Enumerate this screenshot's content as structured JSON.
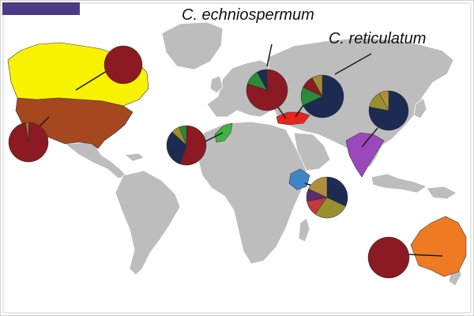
{
  "labels": {
    "echniospermum": "C. echniospermum",
    "reticulatum": "C. reticulatum"
  },
  "colors": {
    "land": "#bdbdbd",
    "border": "#ffffff",
    "tab": "#4a3b86",
    "canada": "#f7f200",
    "usa": "#a5471f",
    "morocco": "#3fb23f",
    "turkey": "#e8231d",
    "india": "#9b48ba",
    "ethiopia": "#3e86c8",
    "australia": "#ef7a24",
    "pie_maroon": "#8b1a22",
    "pie_navy": "#1d2a52",
    "pie_olive": "#9a8f2f",
    "pie_green": "#2a8a3a",
    "pie_tan": "#b08f3c",
    "pie_purple": "#5a2d6e",
    "pie_red": "#c23a3a"
  },
  "pies": [
    {
      "name": "canada-pie",
      "slices": [
        {
          "value": 1.0,
          "color": "#8b1a22"
        }
      ]
    },
    {
      "name": "usa-pie",
      "slices": [
        {
          "value": 0.98,
          "color": "#8b1a22"
        },
        {
          "value": 0.02,
          "color": "#b08f3c"
        }
      ]
    },
    {
      "name": "morocco-pie",
      "slices": [
        {
          "value": 0.55,
          "color": "#8b1a22"
        },
        {
          "value": 0.32,
          "color": "#1d2a52"
        },
        {
          "value": 0.07,
          "color": "#9a8f2f"
        },
        {
          "value": 0.06,
          "color": "#2a8a3a"
        }
      ]
    },
    {
      "name": "echniospermum-pie",
      "slices": [
        {
          "value": 0.8,
          "color": "#8b1a22"
        },
        {
          "value": 0.12,
          "color": "#2a8a3a"
        },
        {
          "value": 0.08,
          "color": "#1d2a52"
        }
      ]
    },
    {
      "name": "reticulatum-pie",
      "slices": [
        {
          "value": 0.68,
          "color": "#1d2a52"
        },
        {
          "value": 0.14,
          "color": "#2a8a3a"
        },
        {
          "value": 0.1,
          "color": "#8b1a22"
        },
        {
          "value": 0.08,
          "color": "#9a8f2f"
        }
      ]
    },
    {
      "name": "india-pie",
      "slices": [
        {
          "value": 0.78,
          "color": "#1d2a52"
        },
        {
          "value": 0.14,
          "color": "#9a8f2f"
        },
        {
          "value": 0.08,
          "color": "#b08f3c"
        }
      ]
    },
    {
      "name": "ethiopia-pie",
      "slices": [
        {
          "value": 0.32,
          "color": "#1d2a52"
        },
        {
          "value": 0.28,
          "color": "#9a8f2f"
        },
        {
          "value": 0.12,
          "color": "#c23a3a"
        },
        {
          "value": 0.1,
          "color": "#5a2d6e"
        },
        {
          "value": 0.18,
          "color": "#b08f3c"
        }
      ]
    },
    {
      "name": "australia-pie",
      "slices": [
        {
          "value": 1.0,
          "color": "#8b1a22"
        }
      ]
    }
  ]
}
